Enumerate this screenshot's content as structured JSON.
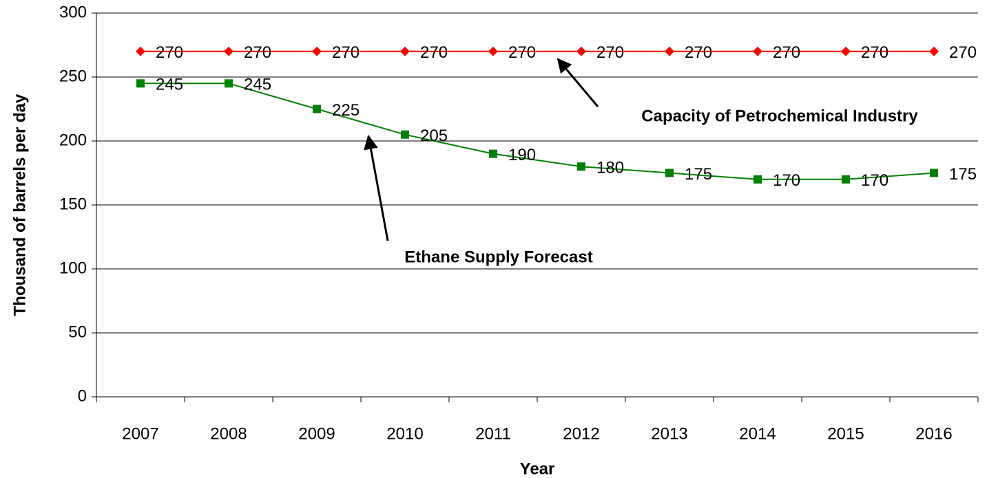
{
  "chart_data": {
    "type": "line",
    "x_label": "Year",
    "y_label": "Thousand of barrels per day",
    "categories": [
      "2007",
      "2008",
      "2009",
      "2010",
      "2011",
      "2012",
      "2013",
      "2014",
      "2015",
      "2016"
    ],
    "series": [
      {
        "name": "Capacity of Petrochemical Industry",
        "color": "#ff0000",
        "marker": "diamond",
        "values": [
          270,
          270,
          270,
          270,
          270,
          270,
          270,
          270,
          270,
          270
        ]
      },
      {
        "name": "Ethane Supply Forecast",
        "color": "#008000",
        "marker": "square",
        "values": [
          245,
          245,
          225,
          205,
          190,
          180,
          175,
          170,
          170,
          175
        ]
      }
    ],
    "ylim": [
      0,
      300
    ],
    "yticks": [
      0,
      50,
      100,
      150,
      200,
      250,
      300
    ],
    "grid": true
  }
}
